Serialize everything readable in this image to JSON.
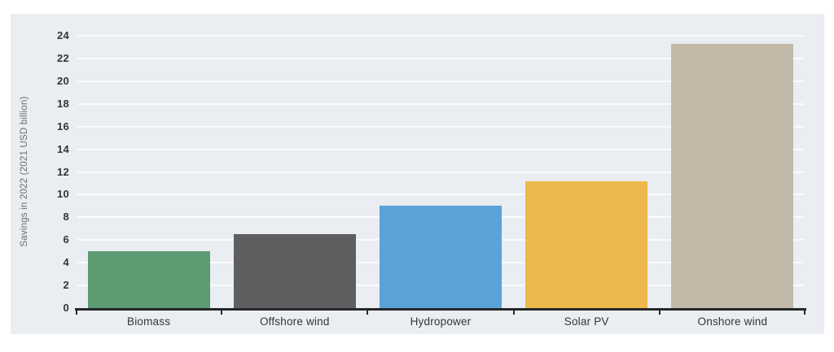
{
  "chart_data": {
    "type": "bar",
    "title": "",
    "xlabel": "",
    "ylabel": "Savings in 2022 (2021 USD billion)",
    "categories": [
      "Biomass",
      "Offshore wind",
      "Hydropower",
      "Solar PV",
      "Onshore wind"
    ],
    "values": [
      5.0,
      6.5,
      9.0,
      11.2,
      23.3
    ],
    "bar_colors": [
      "#5d9b72",
      "#5f5f61",
      "#5aa2d8",
      "#edb94e",
      "#c2b9a9"
    ],
    "yticks": [
      0,
      2,
      4,
      6,
      8,
      10,
      12,
      14,
      16,
      18,
      20,
      22,
      24
    ],
    "yaxis_max": 24,
    "ylim": [
      0,
      25.3
    ],
    "grid": true,
    "legend": false
  },
  "style": {
    "panel_bg": "#eaedf2",
    "gridline_color": "#fafbfd",
    "axis_color": "#26282b",
    "tick_text_color": "#333538",
    "axis_title_color": "#6b6e72"
  }
}
